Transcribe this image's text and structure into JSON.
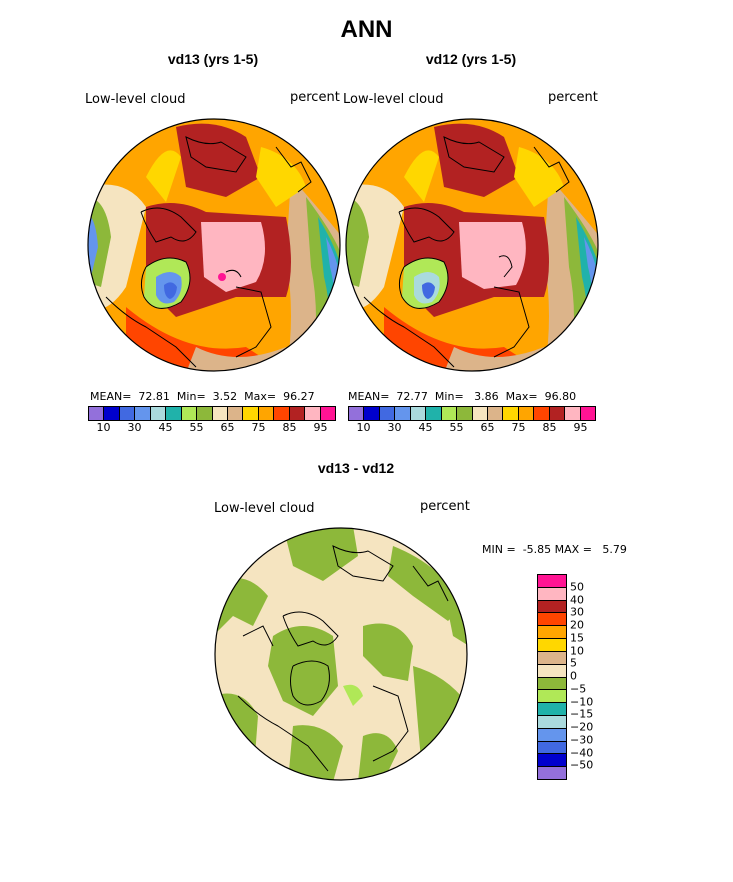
{
  "page_title": "ANN",
  "chart_data": [
    {
      "type": "heatmap",
      "projection": "north polar stereographic",
      "title": "vd13 (yrs 1-5)",
      "variable": "Low-level cloud",
      "units": "percent",
      "mean": "72.81",
      "min": "3.52",
      "max": "96.27",
      "mean_label": "MEAN=",
      "min_label": "Min=",
      "max_label": "Max=",
      "levels": [
        "10",
        "30",
        "45",
        "55",
        "65",
        "75",
        "85",
        "95"
      ],
      "colors": [
        "#9370db",
        "#0000cd",
        "#4169e1",
        "#6495ed",
        "#aadadd",
        "#20b2aa",
        "#b0e857",
        "#8db83a",
        "#f5e4c0",
        "#dcb48a",
        "#ffd700",
        "#ffa500",
        "#ff4500",
        "#b22222",
        "#ffb6c1",
        "#ff1493"
      ]
    },
    {
      "type": "heatmap",
      "projection": "north polar stereographic",
      "title": "vd12 (yrs 1-5)",
      "variable": "Low-level cloud",
      "units": "percent",
      "mean": "72.77",
      "min": "3.86",
      "max": "96.80",
      "mean_label": "MEAN=",
      "min_label": "Min=",
      "max_label": "Max=",
      "levels": [
        "10",
        "30",
        "45",
        "55",
        "65",
        "75",
        "85",
        "95"
      ],
      "colors": [
        "#9370db",
        "#0000cd",
        "#4169e1",
        "#6495ed",
        "#aadadd",
        "#20b2aa",
        "#b0e857",
        "#8db83a",
        "#f5e4c0",
        "#dcb48a",
        "#ffd700",
        "#ffa500",
        "#ff4500",
        "#b22222",
        "#ffb6c1",
        "#ff1493"
      ]
    },
    {
      "type": "heatmap",
      "projection": "north polar stereographic",
      "title": "vd13 - vd12",
      "variable": "Low-level cloud",
      "units": "percent",
      "min_label": "MIN =",
      "min": "-5.85",
      "max_label": "MAX =",
      "max": "5.79",
      "levels": [
        "50",
        "40",
        "30",
        "20",
        "15",
        "10",
        "5",
        "0",
        "−5",
        "−10",
        "−15",
        "−20",
        "−30",
        "−40",
        "−50"
      ],
      "colors": [
        "#ff1493",
        "#ffb6c1",
        "#b22222",
        "#ff4500",
        "#ffa500",
        "#ffd700",
        "#dcb48a",
        "#f5e4c0",
        "#8db83a",
        "#b0e857",
        "#20b2aa",
        "#aadadd",
        "#6495ed",
        "#4169e1",
        "#0000cd",
        "#9370db"
      ]
    }
  ]
}
